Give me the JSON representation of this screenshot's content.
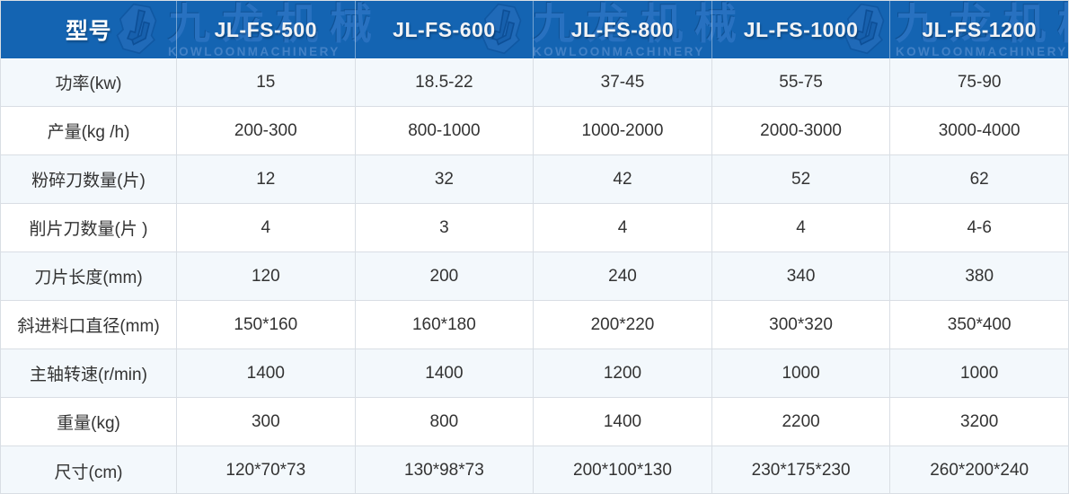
{
  "colors": {
    "header_background": "#1464b2",
    "header_text": "#f2f3f5",
    "watermark_blue": "#2d74c4",
    "watermark_en_blue": "#4b87ca",
    "row_alternate": "#f3f8fc",
    "row_white": "#ffffff",
    "border": "#d9dee4",
    "body_text": "#333333"
  },
  "watermark": {
    "brand_cn": "九龙机械",
    "brand_en": "KOWLOONMACHINERY",
    "logo_icon": "jl-monogram-icon"
  },
  "chart_data": {
    "type": "table",
    "columns": [
      "型号",
      "JL-FS-500",
      "JL-FS-600",
      "JL-FS-800",
      "JL-FS-1000",
      "JL-FS-1200"
    ],
    "rows": [
      {
        "label": "功率(kw)",
        "values": [
          "15",
          "18.5-22",
          "37-45",
          "55-75",
          "75-90"
        ]
      },
      {
        "label": "产量(kg /h)",
        "values": [
          "200-300",
          "800-1000",
          "1000-2000",
          "2000-3000",
          "3000-4000"
        ]
      },
      {
        "label": "粉碎刀数量(片)",
        "values": [
          "12",
          "32",
          "42",
          "52",
          "62"
        ]
      },
      {
        "label": "削片刀数量(片 )",
        "values": [
          "4",
          "3",
          "4",
          "4",
          "4-6"
        ]
      },
      {
        "label": "刀片长度(mm)",
        "values": [
          "120",
          "200",
          "240",
          "340",
          "380"
        ]
      },
      {
        "label": "斜进料口直径(mm)",
        "values": [
          "150*160",
          "160*180",
          "200*220",
          "300*320",
          "350*400"
        ]
      },
      {
        "label": "主轴转速(r/min)",
        "values": [
          "1400",
          "1400",
          "1200",
          "1000",
          "1000"
        ]
      },
      {
        "label": "重量(kg)",
        "values": [
          "300",
          "800",
          "1400",
          "2200",
          "3200"
        ]
      },
      {
        "label": "尺寸(cm)",
        "values": [
          "120*70*73",
          "130*98*73",
          "200*100*130",
          "230*175*230",
          "260*200*240"
        ]
      }
    ]
  }
}
